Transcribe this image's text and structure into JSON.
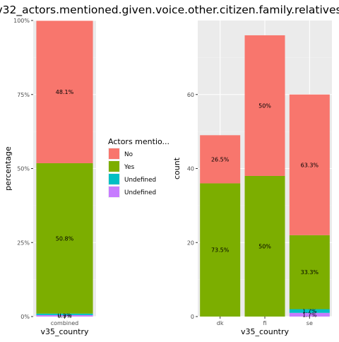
{
  "title": "v32_actors.mentioned.given.voice.other.citizen.family.relatives",
  "legend": {
    "title": "Actors mentio...",
    "entries": [
      {
        "label": "No",
        "color": "#F8766D"
      },
      {
        "label": "Yes",
        "color": "#7CAE00"
      },
      {
        "label": "Undefined",
        "color": "#00BFC4"
      },
      {
        "label": "Undefined",
        "color": "#C77CFF"
      }
    ]
  },
  "colors": {
    "panel": "#EBEBEB",
    "grid_major": "#FFFFFF",
    "grid_minor": "#F5F5F5",
    "text": "#4D4D4D"
  },
  "chart_data": [
    {
      "type": "bar",
      "stacked": true,
      "xlabel": "v35_country",
      "ylabel": "percentage",
      "categories": [
        "combined"
      ],
      "ylim": [
        0,
        100
      ],
      "yticks": [
        0,
        25,
        50,
        75,
        100
      ],
      "ytick_labels": [
        "0%",
        "25%",
        "50%",
        "75%",
        "100%"
      ],
      "series": [
        {
          "name": "Undefined",
          "color": "#C77CFF",
          "values": [
            0.5
          ],
          "labels": [
            "0.5%"
          ]
        },
        {
          "name": "Undefined",
          "color": "#00BFC4",
          "values": [
            0.5
          ],
          "labels": [
            "0.5%"
          ]
        },
        {
          "name": "Yes",
          "color": "#7CAE00",
          "values": [
            50.8
          ],
          "labels": [
            "50.8%"
          ]
        },
        {
          "name": "No",
          "color": "#F8766D",
          "values": [
            48.1
          ],
          "labels": [
            "48.1%"
          ]
        }
      ]
    },
    {
      "type": "bar",
      "stacked": true,
      "xlabel": "v35_country",
      "ylabel": "count",
      "categories": [
        "dk",
        "fi",
        "se"
      ],
      "ylim": [
        0,
        80
      ],
      "yticks": [
        0,
        20,
        40,
        60
      ],
      "ytick_labels": [
        "0",
        "20",
        "40",
        "60"
      ],
      "series": [
        {
          "name": "Undefined",
          "color": "#C77CFF",
          "values": [
            0,
            0,
            1
          ],
          "labels": [
            "",
            "",
            "1.7%"
          ]
        },
        {
          "name": "Undefined",
          "color": "#00BFC4",
          "values": [
            0,
            0,
            1
          ],
          "labels": [
            "",
            "",
            "1.7%"
          ]
        },
        {
          "name": "Yes",
          "color": "#7CAE00",
          "values": [
            36,
            38,
            20
          ],
          "labels": [
            "73.5%",
            "50%",
            "33.3%"
          ]
        },
        {
          "name": "No",
          "color": "#F8766D",
          "values": [
            13,
            38,
            38
          ],
          "labels": [
            "26.5%",
            "50%",
            "63.3%"
          ]
        }
      ]
    }
  ]
}
